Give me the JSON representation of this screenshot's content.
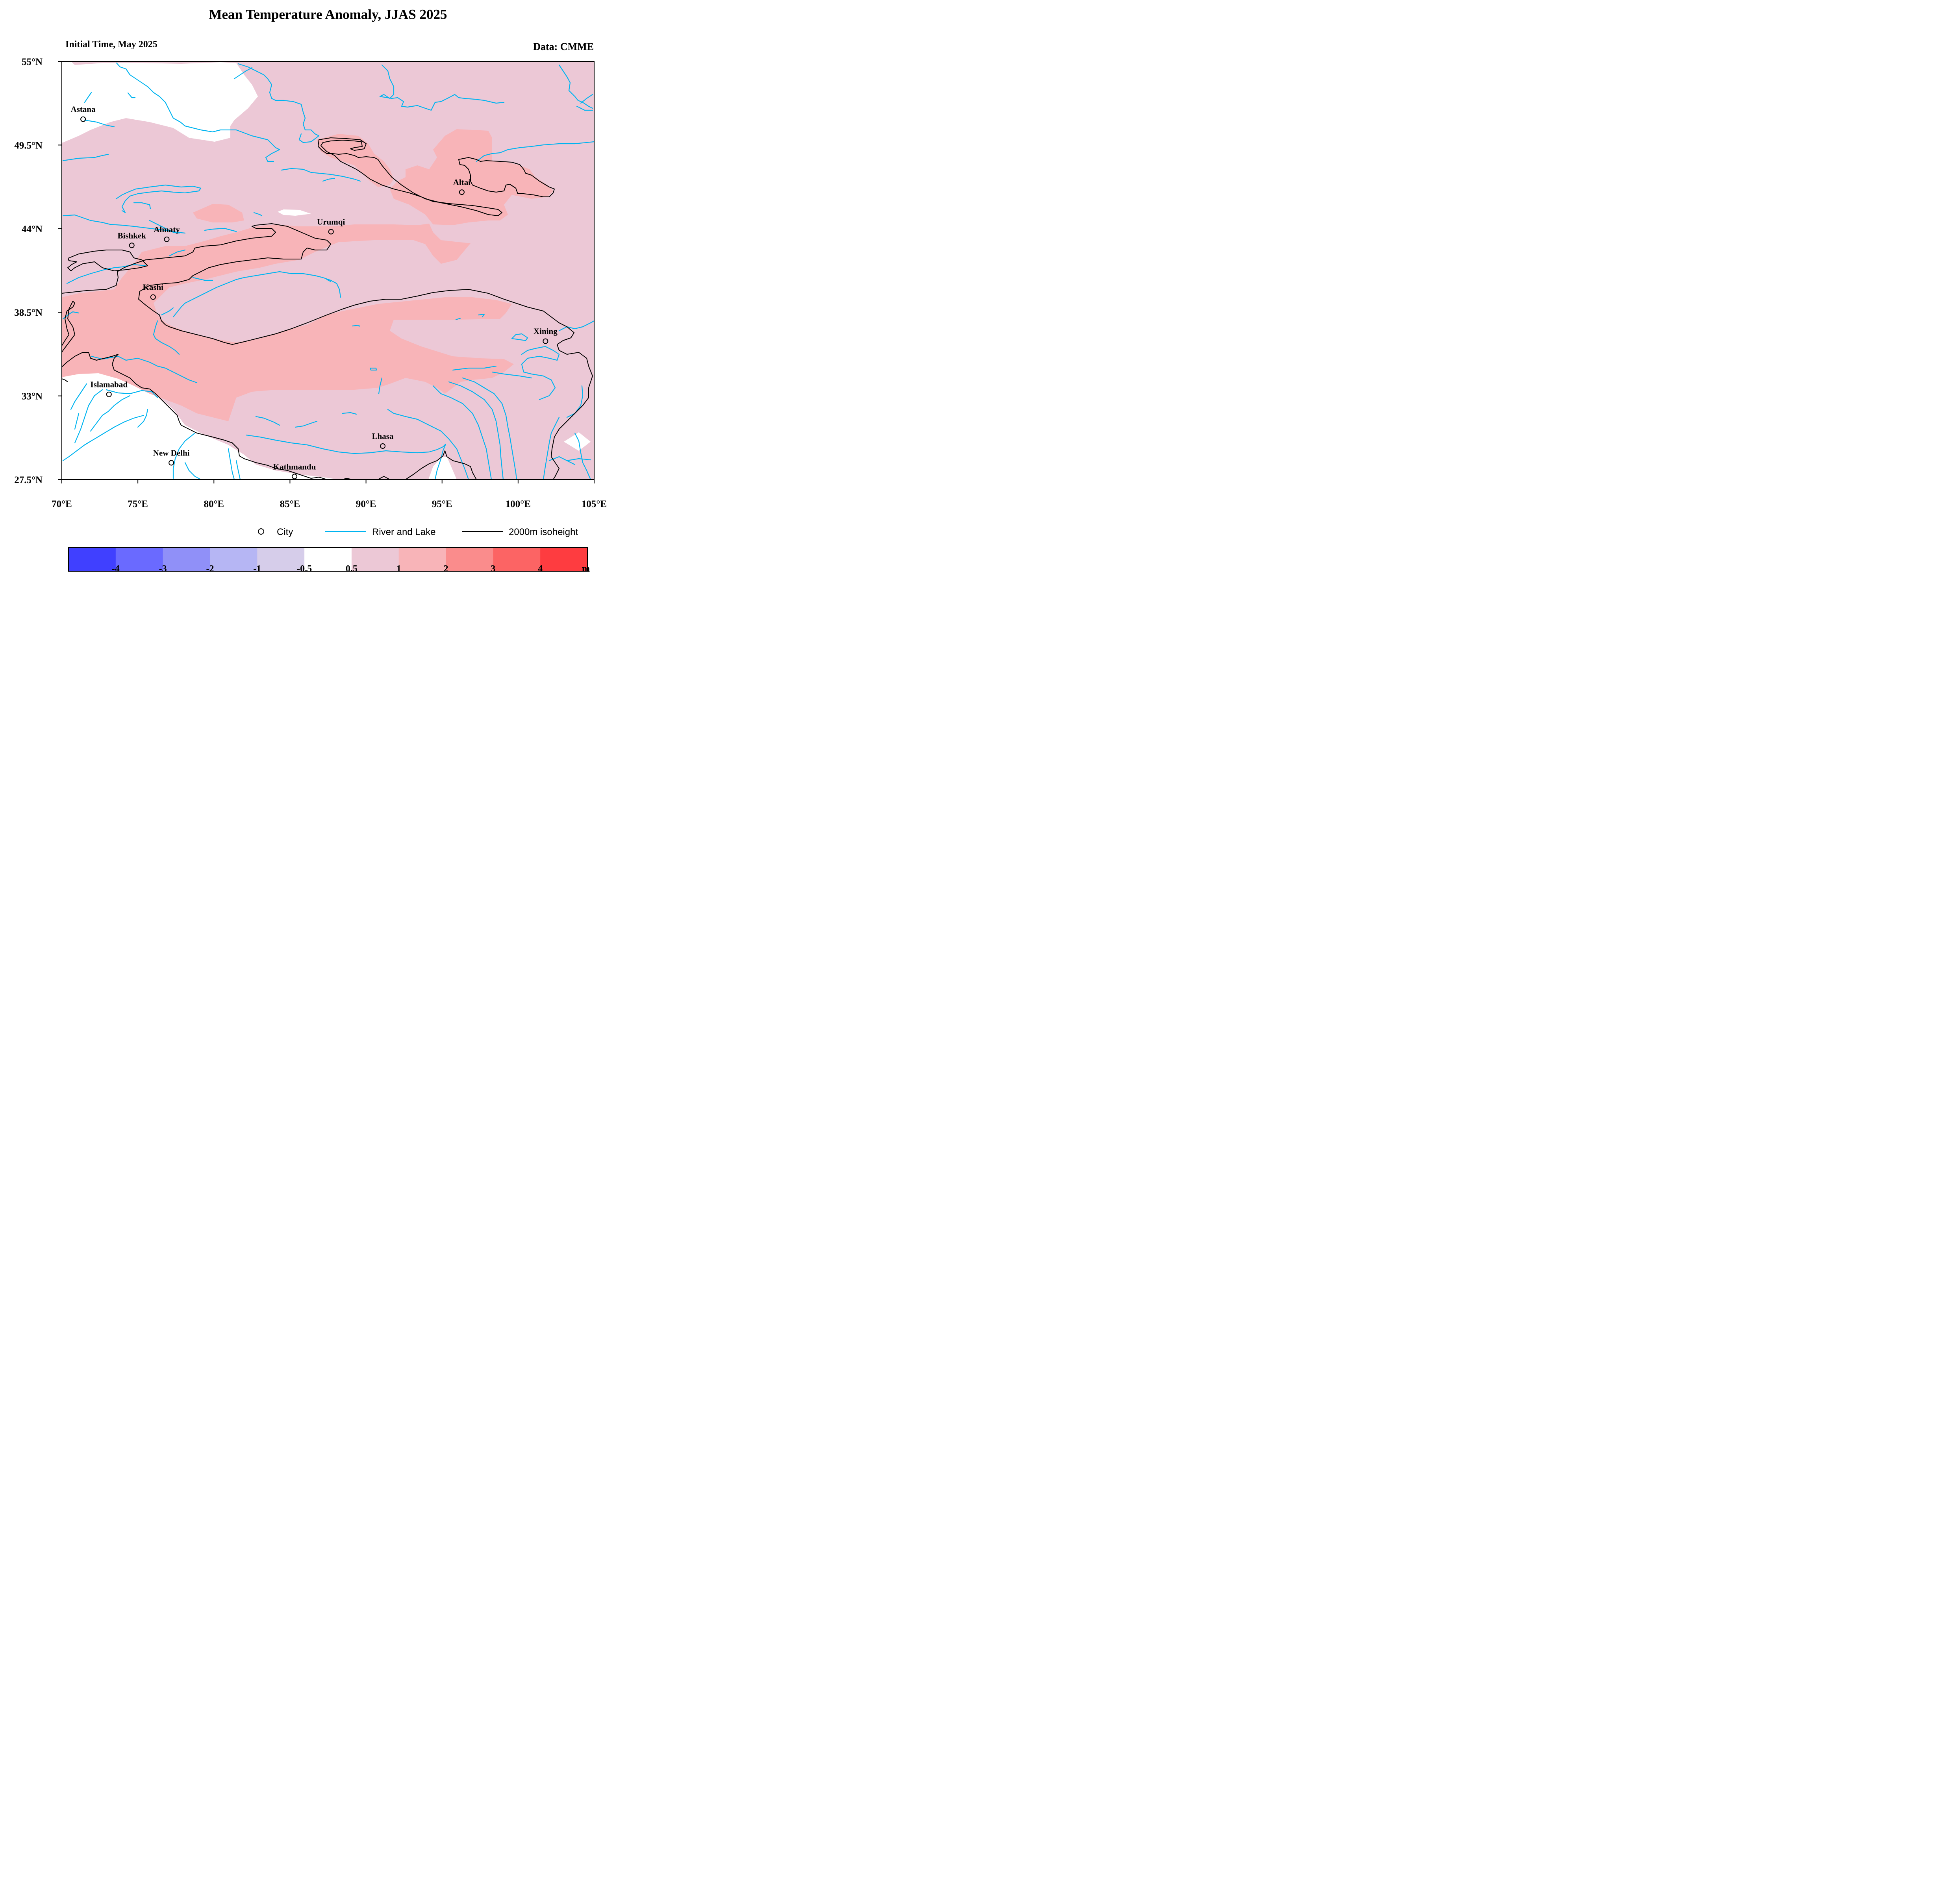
{
  "title": "Mean Temperature Anomaly, JJAS 2025",
  "subtitle_left": "Initial Time, May 2025",
  "subtitle_right": "Data: CMME",
  "map": {
    "lon_range": [
      70,
      105
    ],
    "lat_range": [
      27.5,
      55
    ],
    "x_ticks": [
      "70°E",
      "75°E",
      "80°E",
      "85°E",
      "90°E",
      "95°E",
      "100°E",
      "105°E"
    ],
    "y_ticks": [
      "55°N",
      "49.5°N",
      "44°N",
      "38.5°N",
      "33°N",
      "27.5°N"
    ],
    "cities": [
      {
        "name": "Astana",
        "lon": 71.4,
        "lat": 51.2
      },
      {
        "name": "Bishkek",
        "lon": 74.6,
        "lat": 42.9
      },
      {
        "name": "Almaty",
        "lon": 76.9,
        "lat": 43.3
      },
      {
        "name": "Urumqi",
        "lon": 87.7,
        "lat": 43.8
      },
      {
        "name": "Altai",
        "lon": 96.3,
        "lat": 46.4
      },
      {
        "name": "Kashi",
        "lon": 76.0,
        "lat": 39.5
      },
      {
        "name": "Xining",
        "lon": 101.8,
        "lat": 36.6
      },
      {
        "name": "Islamabad",
        "lon": 73.1,
        "lat": 33.1
      },
      {
        "name": "Lhasa",
        "lon": 91.1,
        "lat": 29.7
      },
      {
        "name": "New Delhi",
        "lon": 77.2,
        "lat": 28.6
      },
      {
        "name": "Kathmandu",
        "lon": 85.3,
        "lat": 27.7
      }
    ]
  },
  "legend": {
    "city": "City",
    "river": "River and Lake",
    "isoheight": "2000m isoheight"
  },
  "colorbar": {
    "colors": [
      "#4040ff",
      "#6a6aff",
      "#9090f8",
      "#b6b6f4",
      "#d6cdea",
      "#ffffff",
      "#ecc8d6",
      "#f8b4b8",
      "#fa8c8c",
      "#fc6464",
      "#fe3c40"
    ],
    "labels": [
      "-4",
      "-3",
      "-2",
      "-1",
      "-0.5",
      "0.5",
      "1",
      "2",
      "3",
      "4"
    ],
    "unit": "m"
  },
  "colors": {
    "anomaly_05_1": "#ecc8d6",
    "anomaly_1_2": "#f8b4b8",
    "river": "#00b4f0",
    "isoheight": "#000000"
  }
}
